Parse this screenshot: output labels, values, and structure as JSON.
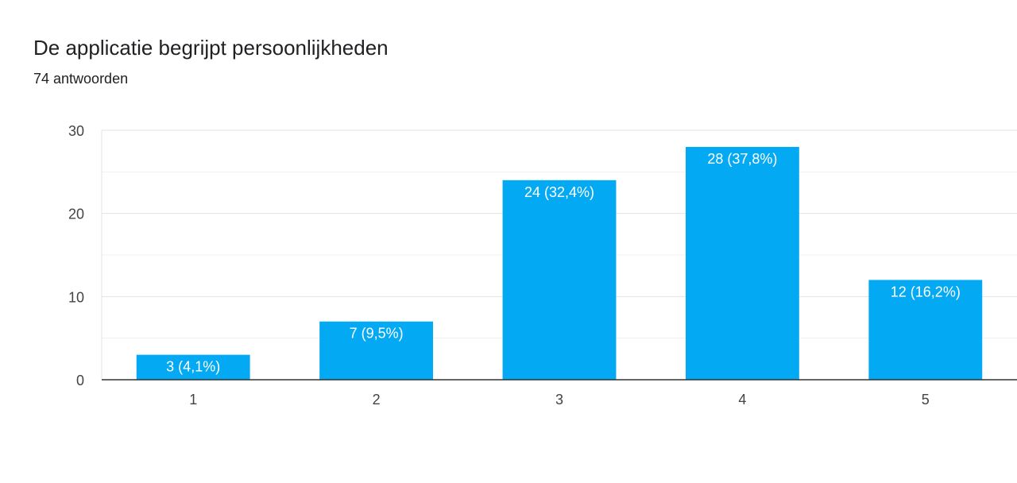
{
  "header": {
    "title": "De applicatie begrijpt persoonlijkheden",
    "subtitle": "74 antwoorden"
  },
  "chart_data": {
    "type": "bar",
    "title": "De applicatie begrijpt persoonlijkheden",
    "subtitle": "74 antwoorden",
    "categories": [
      "1",
      "2",
      "3",
      "4",
      "5"
    ],
    "values": [
      3,
      7,
      24,
      28,
      12
    ],
    "data_labels": [
      "3 (4,1%)",
      "7 (9,5%)",
      "24 (32,4%)",
      "28 (37,8%)",
      "12 (16,2%)"
    ],
    "y_ticks": [
      "0",
      "10",
      "20",
      "30"
    ],
    "ylim": [
      0,
      30
    ],
    "xlabel": "",
    "ylabel": "",
    "grid": true,
    "legend": "none",
    "colors": {
      "bar": "#04a9f4",
      "grid": "#e6e6e6",
      "axis": "#333333"
    }
  }
}
